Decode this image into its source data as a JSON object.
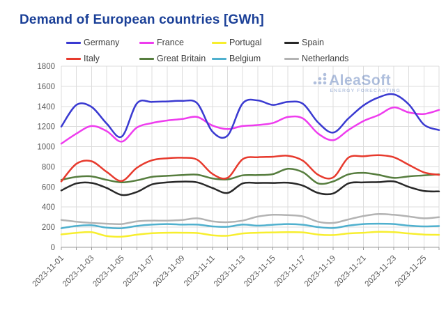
{
  "title": "Demand of European countries [GWh]",
  "watermark": {
    "brand": "AleaSoft",
    "tagline": "ENERGY FORECASTING"
  },
  "chart_data": {
    "type": "line",
    "title": "Demand of European countries [GWh]",
    "xlabel": "",
    "ylabel": "",
    "ylim": [
      0,
      1800
    ],
    "y_ticks": [
      0,
      200,
      400,
      600,
      800,
      1000,
      1200,
      1400,
      1600,
      1800
    ],
    "grid": true,
    "legend_position": "top",
    "x": [
      "2023-11-01",
      "2023-11-02",
      "2023-11-03",
      "2023-11-04",
      "2023-11-05",
      "2023-11-06",
      "2023-11-07",
      "2023-11-08",
      "2023-11-09",
      "2023-11-10",
      "2023-11-11",
      "2023-11-12",
      "2023-11-13",
      "2023-11-14",
      "2023-11-15",
      "2023-11-16",
      "2023-11-17",
      "2023-11-18",
      "2023-11-19",
      "2023-11-20",
      "2023-11-21",
      "2023-11-22",
      "2023-11-23",
      "2023-11-24",
      "2023-11-25",
      "2023-11-26"
    ],
    "x_tick_labels": [
      "2023-11-01",
      "2023-11-03",
      "2023-11-05",
      "2023-11-07",
      "2023-11-09",
      "2023-11-11",
      "2023-11-13",
      "2023-11-15",
      "2023-11-17",
      "2023-11-19",
      "2023-11-21",
      "2023-11-23",
      "2023-11-25"
    ],
    "series": [
      {
        "name": "Germany",
        "color": "#3a3ad1",
        "values": [
          1200,
          1415,
          1395,
          1230,
          1100,
          1430,
          1445,
          1450,
          1455,
          1430,
          1150,
          1110,
          1430,
          1460,
          1415,
          1445,
          1425,
          1240,
          1140,
          1280,
          1410,
          1490,
          1520,
          1420,
          1220,
          1165
        ]
      },
      {
        "name": "France",
        "color": "#ee3cee",
        "values": [
          1030,
          1130,
          1205,
          1155,
          1050,
          1190,
          1235,
          1260,
          1275,
          1295,
          1210,
          1175,
          1205,
          1215,
          1235,
          1295,
          1280,
          1130,
          1065,
          1165,
          1255,
          1315,
          1390,
          1340,
          1325,
          1365
        ]
      },
      {
        "name": "Portugal",
        "color": "#f7ee2e",
        "values": [
          128,
          143,
          150,
          112,
          106,
          125,
          140,
          145,
          145,
          142,
          120,
          115,
          138,
          145,
          148,
          150,
          148,
          127,
          122,
          138,
          145,
          154,
          150,
          138,
          127,
          124
        ]
      },
      {
        "name": "Spain",
        "color": "#282828",
        "values": [
          565,
          635,
          640,
          590,
          520,
          550,
          625,
          645,
          653,
          645,
          590,
          540,
          635,
          640,
          640,
          642,
          612,
          540,
          535,
          635,
          645,
          648,
          655,
          600,
          560,
          555
        ]
      },
      {
        "name": "Italy",
        "color": "#e73a2d",
        "values": [
          655,
          830,
          855,
          750,
          660,
          790,
          865,
          885,
          890,
          870,
          730,
          690,
          875,
          895,
          900,
          910,
          860,
          720,
          695,
          890,
          905,
          915,
          895,
          820,
          745,
          720
        ]
      },
      {
        "name": "Great Britain",
        "color": "#567d3e",
        "values": [
          670,
          700,
          705,
          670,
          645,
          665,
          700,
          710,
          718,
          722,
          685,
          675,
          715,
          718,
          727,
          780,
          745,
          635,
          655,
          725,
          740,
          720,
          690,
          705,
          715,
          725
        ]
      },
      {
        "name": "Belgium",
        "color": "#4fb0ce",
        "values": [
          190,
          212,
          219,
          195,
          190,
          212,
          226,
          231,
          226,
          226,
          208,
          204,
          226,
          215,
          224,
          231,
          224,
          201,
          192,
          215,
          231,
          235,
          231,
          215,
          208,
          211
        ]
      },
      {
        "name": "Netherlands",
        "color": "#b3b3b3",
        "values": [
          272,
          254,
          242,
          235,
          231,
          258,
          265,
          265,
          272,
          288,
          258,
          250,
          265,
          305,
          323,
          320,
          307,
          254,
          242,
          277,
          311,
          330,
          323,
          307,
          288,
          300
        ]
      }
    ]
  },
  "colors": {
    "title": "#1a3f97",
    "grid": "#dcdcdc",
    "axis": "#9a9a9a",
    "tick_text": "#595959",
    "watermark": "#5072b4"
  }
}
